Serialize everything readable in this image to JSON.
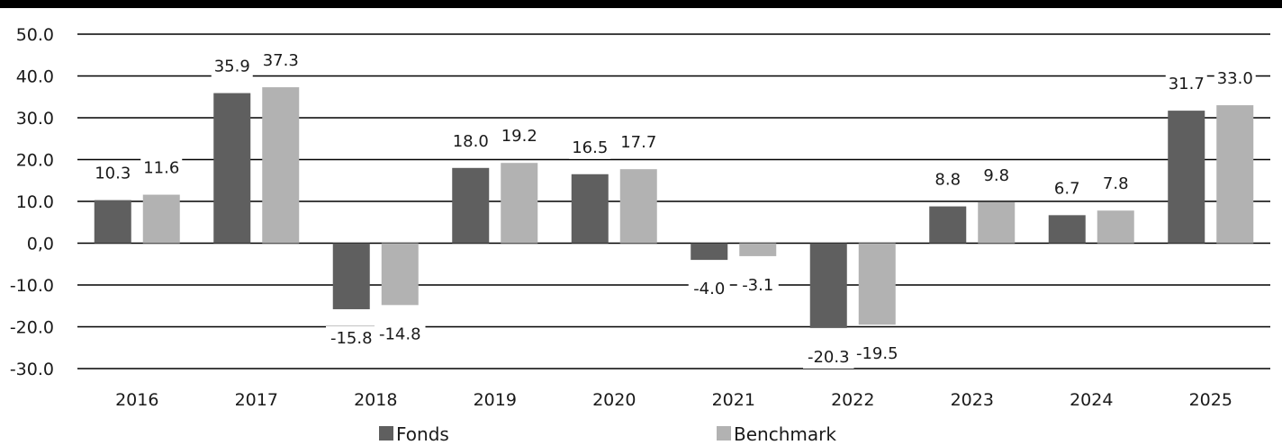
{
  "chart_data": {
    "type": "bar",
    "categories": [
      "2016",
      "2017",
      "2018",
      "2019",
      "2020",
      "2021",
      "2022",
      "2023",
      "2024",
      "2025"
    ],
    "series": [
      {
        "name": "Fonds",
        "values": [
          10.3,
          35.9,
          -15.8,
          18.0,
          16.5,
          -4.0,
          -20.3,
          8.8,
          6.7,
          31.7
        ],
        "labels": [
          "10.3",
          "35.9",
          "-15.8",
          "18.0",
          "16.5",
          "-4.0",
          "-20.3",
          "8.8",
          "6.7",
          "31.7"
        ],
        "color": "#5f5f5f"
      },
      {
        "name": "Benchmark",
        "values": [
          11.6,
          37.3,
          -14.8,
          19.2,
          17.7,
          -3.1,
          -19.5,
          9.8,
          7.8,
          33.0
        ],
        "labels": [
          "11.6",
          "37.3",
          "-14.8",
          "19.2",
          "17.7",
          "-3.1",
          "-19.5",
          "9.8",
          "7.8",
          "33.0"
        ],
        "color": "#b2b2b2"
      }
    ],
    "yticks": [
      "50.0",
      "40.0",
      "30.0",
      "20.0",
      "10.0",
      "0,0",
      "-10.0",
      "-20.0",
      "-30.0"
    ],
    "ylim": [
      -30,
      50
    ],
    "grid": true,
    "legend_position": "bottom",
    "title": "",
    "xlabel": "",
    "ylabel": ""
  }
}
